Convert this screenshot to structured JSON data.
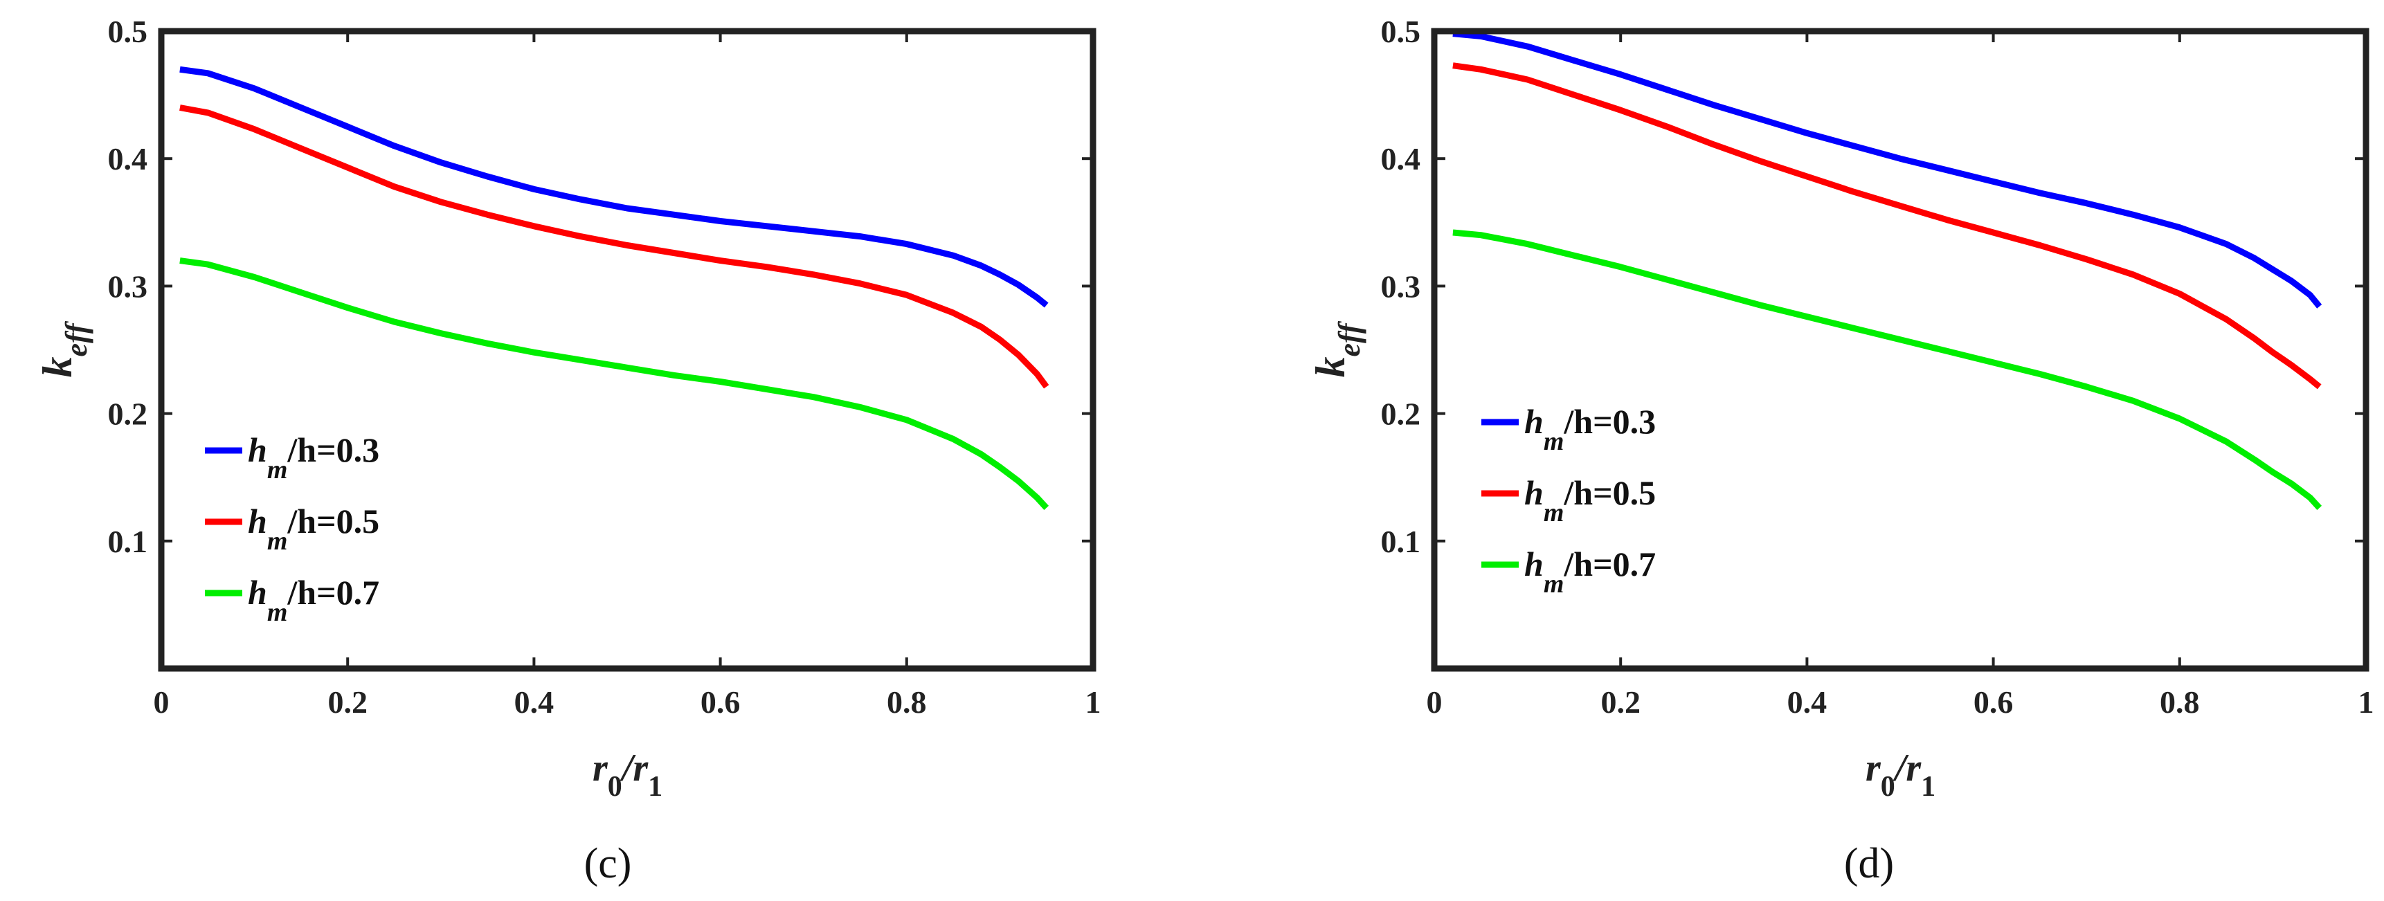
{
  "chart_data": [
    {
      "type": "line",
      "panel_label": "(c)",
      "xlabel": {
        "main": "r",
        "sub1": "0",
        "slash": "/r",
        "sub2": "1"
      },
      "ylabel": {
        "main": "k",
        "sub": "eff"
      },
      "xlim": [
        0,
        1
      ],
      "ylim": [
        0,
        0.5
      ],
      "xticks": [
        0,
        0.2,
        0.4,
        0.6,
        0.8,
        1
      ],
      "xtick_labels": [
        "0",
        "0.2",
        "0.4",
        "0.6",
        "0.8",
        "1"
      ],
      "yticks": [
        0.1,
        0.2,
        0.3,
        0.4,
        0.5
      ],
      "ytick_labels": [
        "0.1",
        "0.2",
        "0.3",
        "0.4",
        "0.5"
      ],
      "x": [
        0.02,
        0.05,
        0.1,
        0.15,
        0.2,
        0.25,
        0.3,
        0.35,
        0.4,
        0.45,
        0.5,
        0.55,
        0.6,
        0.65,
        0.7,
        0.75,
        0.8,
        0.85,
        0.88,
        0.9,
        0.92,
        0.94,
        0.95
      ],
      "series": [
        {
          "name": "h_m/h=0.3",
          "legend": {
            "a": "h",
            "sub": "m",
            "b": "/h=0.3"
          },
          "color": "#0000ff",
          "values": [
            0.47,
            0.467,
            0.455,
            0.44,
            0.425,
            0.41,
            0.397,
            0.386,
            0.376,
            0.368,
            0.361,
            0.356,
            0.351,
            0.347,
            0.343,
            0.339,
            0.333,
            0.324,
            0.316,
            0.309,
            0.301,
            0.291,
            0.285
          ]
        },
        {
          "name": "h_m/h=0.5",
          "legend": {
            "a": "h",
            "sub": "m",
            "b": "/h=0.5"
          },
          "color": "#ff0000",
          "values": [
            0.44,
            0.436,
            0.423,
            0.408,
            0.393,
            0.378,
            0.366,
            0.356,
            0.347,
            0.339,
            0.332,
            0.326,
            0.32,
            0.315,
            0.309,
            0.302,
            0.293,
            0.279,
            0.268,
            0.258,
            0.246,
            0.231,
            0.221
          ]
        },
        {
          "name": "h_m/h=0.7",
          "legend": {
            "a": "h",
            "sub": "m",
            "b": "/h=0.7"
          },
          "color": "#00ee00",
          "values": [
            0.32,
            0.317,
            0.307,
            0.295,
            0.283,
            0.272,
            0.263,
            0.255,
            0.248,
            0.242,
            0.236,
            0.23,
            0.225,
            0.219,
            0.213,
            0.205,
            0.195,
            0.18,
            0.168,
            0.158,
            0.147,
            0.134,
            0.126
          ]
        }
      ]
    },
    {
      "type": "line",
      "panel_label": "(d)",
      "xlabel": {
        "main": "r",
        "sub1": "0",
        "slash": "/r",
        "sub2": "1"
      },
      "ylabel": {
        "main": "k",
        "sub": "eff"
      },
      "xlim": [
        0,
        1
      ],
      "ylim": [
        0,
        0.5
      ],
      "xticks": [
        0,
        0.2,
        0.4,
        0.6,
        0.8,
        1
      ],
      "xtick_labels": [
        "0",
        "0.2",
        "0.4",
        "0.6",
        "0.8",
        "1"
      ],
      "yticks": [
        0.1,
        0.2,
        0.3,
        0.4,
        0.5
      ],
      "ytick_labels": [
        "0.1",
        "0.2",
        "0.3",
        "0.4",
        "0.5"
      ],
      "x": [
        0.02,
        0.05,
        0.1,
        0.15,
        0.2,
        0.25,
        0.3,
        0.35,
        0.4,
        0.45,
        0.5,
        0.55,
        0.6,
        0.65,
        0.7,
        0.75,
        0.8,
        0.85,
        0.88,
        0.9,
        0.92,
        0.94,
        0.95
      ],
      "series": [
        {
          "name": "h_m/h=0.3",
          "legend": {
            "a": "h",
            "sub": "m",
            "b": "/h=0.3"
          },
          "color": "#0000ff",
          "values": [
            0.498,
            0.496,
            0.488,
            0.477,
            0.466,
            0.454,
            0.442,
            0.431,
            0.42,
            0.41,
            0.4,
            0.391,
            0.382,
            0.373,
            0.365,
            0.356,
            0.346,
            0.333,
            0.322,
            0.313,
            0.304,
            0.293,
            0.284
          ]
        },
        {
          "name": "h_m/h=0.5",
          "legend": {
            "a": "h",
            "sub": "m",
            "b": "/h=0.5"
          },
          "color": "#ff0000",
          "values": [
            0.473,
            0.47,
            0.462,
            0.45,
            0.438,
            0.425,
            0.411,
            0.398,
            0.386,
            0.374,
            0.363,
            0.352,
            0.342,
            0.332,
            0.321,
            0.309,
            0.294,
            0.274,
            0.259,
            0.248,
            0.238,
            0.227,
            0.221
          ]
        },
        {
          "name": "h_m/h=0.7",
          "legend": {
            "a": "h",
            "sub": "m",
            "b": "/h=0.7"
          },
          "color": "#00ee00",
          "values": [
            0.342,
            0.34,
            0.333,
            0.324,
            0.315,
            0.305,
            0.295,
            0.285,
            0.276,
            0.267,
            0.258,
            0.249,
            0.24,
            0.231,
            0.221,
            0.21,
            0.196,
            0.178,
            0.164,
            0.154,
            0.145,
            0.134,
            0.126
          ]
        }
      ]
    }
  ]
}
